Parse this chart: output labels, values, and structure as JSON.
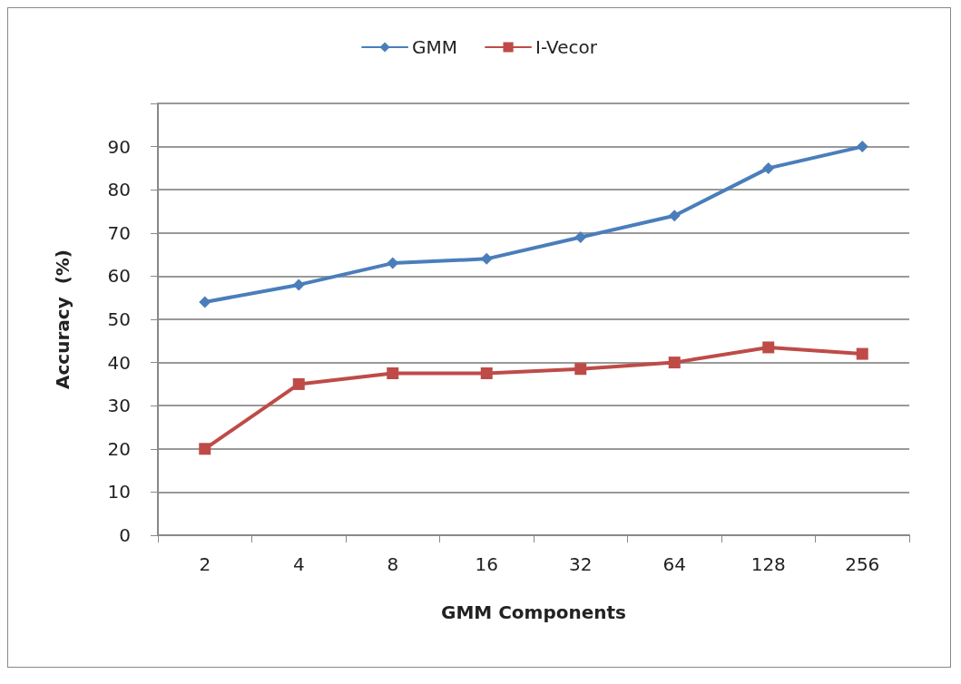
{
  "chart_data": {
    "type": "line",
    "xlabel": "GMM Components",
    "ylabel": "Accuracy  (%)",
    "categories": [
      "2",
      "4",
      "8",
      "16",
      "32",
      "64",
      "128",
      "256"
    ],
    "series": [
      {
        "name": "GMM",
        "color": "#4a7ebb",
        "marker": "diamond",
        "values": [
          54,
          58,
          63,
          64,
          69,
          74,
          85,
          90
        ]
      },
      {
        "name": "I-Vecor",
        "color": "#be4b48",
        "marker": "square",
        "values": [
          20,
          35,
          37.5,
          37.5,
          38.5,
          40,
          43.5,
          42
        ]
      }
    ],
    "ylim": [
      0,
      100
    ],
    "yticks": [
      0,
      10,
      20,
      30,
      40,
      50,
      60,
      70,
      80,
      90,
      {
        "value": 100,
        "label": null
      }
    ],
    "grid": "y",
    "legend": "top",
    "line_style": "solid"
  }
}
